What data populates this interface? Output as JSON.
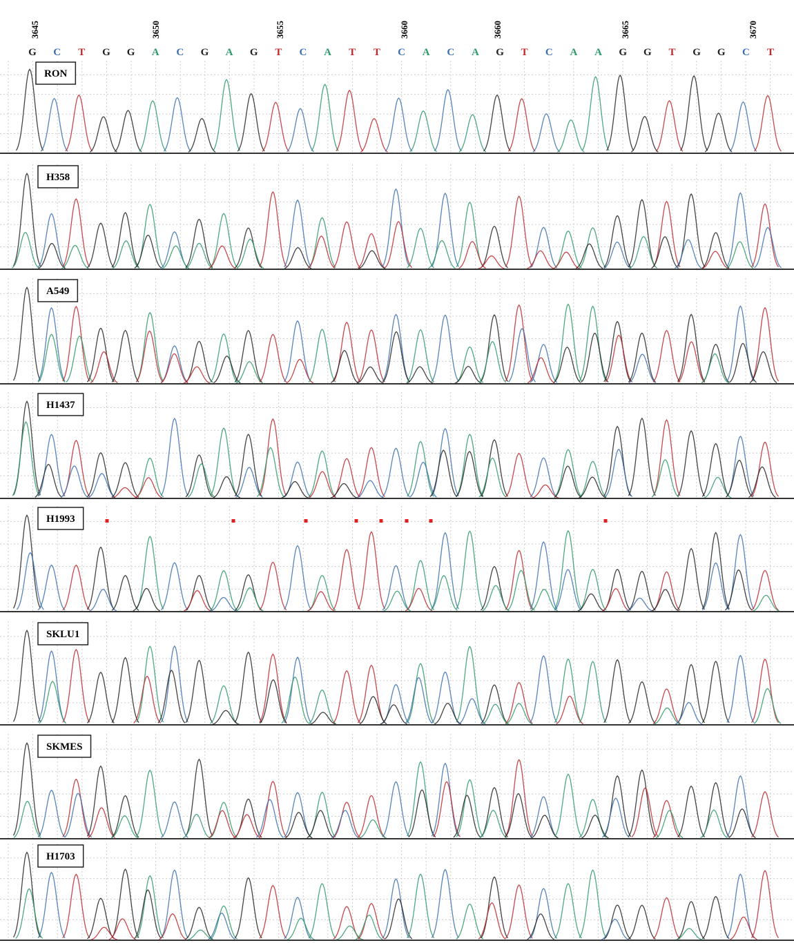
{
  "positions": [
    "3645",
    "3650",
    "3655",
    "3660",
    "3660",
    "3665",
    "3670"
  ],
  "sequence": [
    "G",
    "C",
    "T",
    "G",
    "G",
    "A",
    "C",
    "G",
    "A",
    "G",
    "T",
    "C",
    "A",
    "T",
    "T",
    "C",
    "A",
    "C",
    "A",
    "G",
    "T",
    "C",
    "A",
    "A",
    "G",
    "G",
    "T",
    "G",
    "G",
    "C",
    "T"
  ],
  "base_colors": {
    "G": "#222222",
    "C": "#3a6fb0",
    "T": "#c0282d",
    "A": "#2e9a6a"
  },
  "panels": [
    "RON",
    "H358",
    "A549",
    "H1437",
    "H1993",
    "SKLU1",
    "SKMES",
    "H1703"
  ]
}
